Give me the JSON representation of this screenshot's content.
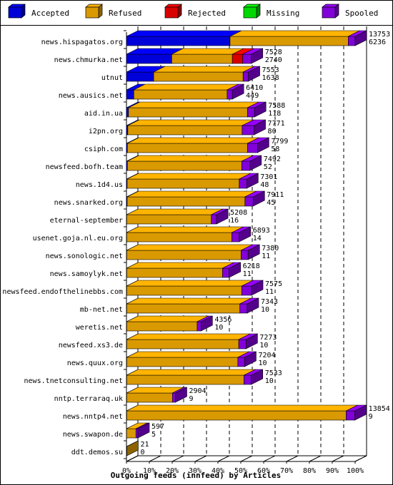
{
  "chart_data": {
    "type": "bar",
    "orientation": "horizontal",
    "stacked": true,
    "style": "3d",
    "title": "Outgoing feeds (innfeed) by Articles",
    "xlabel": "Outgoing feeds (innfeed) by Articles",
    "ylabel": "",
    "xlim": [
      0,
      100
    ],
    "x_unit": "%",
    "x_ticks": [
      "0%",
      "10%",
      "20%",
      "30%",
      "40%",
      "50%",
      "60%",
      "70%",
      "80%",
      "90%",
      "100%"
    ],
    "grid": "vertical-dashed",
    "legend_position": "top",
    "legend": [
      {
        "name": "Accepted",
        "color": "#0000ff"
      },
      {
        "name": "Refused",
        "color": "#ffb400"
      },
      {
        "name": "Rejected",
        "color": "#ff0000"
      },
      {
        "name": "Missing",
        "color": "#00ff00"
      },
      {
        "name": "Spooled",
        "color": "#9900ff"
      }
    ],
    "categories": [
      "news.hispagatos.org",
      "news.chmurka.net",
      "utnut",
      "news.ausics.net",
      "aid.in.ua",
      "i2pn.org",
      "csiph.com",
      "newsfeed.bofh.team",
      "news.1d4.us",
      "news.snarked.org",
      "eternal-september",
      "usenet.goja.nl.eu.org",
      "news.sonologic.net",
      "news.samoylyk.net",
      "newsfeed.endofthelinebbs.com",
      "mb-net.net",
      "weretis.net",
      "newsfeed.xs3.de",
      "news.quux.org",
      "news.tnetconsulting.net",
      "nntp.terraraq.uk",
      "news.nntp4.net",
      "news.swapon.de",
      "ddt.demos.su"
    ],
    "labels_total": [
      "13753",
      "7528",
      "7553",
      "6410",
      "7588",
      "7771",
      "7799",
      "7492",
      "7301",
      "7911",
      "5208",
      "6893",
      "7380",
      "6218",
      "7575",
      "7343",
      "4356",
      "7273",
      "7204",
      "7533",
      "2904",
      "13854",
      "597",
      "21"
    ],
    "labels_accepted": [
      "6236",
      "2740",
      "1638",
      "449",
      "118",
      "80",
      "58",
      "52",
      "48",
      "45",
      "16",
      "14",
      "11",
      "11",
      "11",
      "10",
      "10",
      "10",
      "10",
      "10",
      "9",
      "9",
      "5",
      "0"
    ],
    "series": [
      {
        "name": "Accepted",
        "values": [
          45.3,
          19.8,
          11.9,
          3.2,
          0.9,
          0.6,
          0.4,
          0.4,
          0.3,
          0.3,
          0.1,
          0.1,
          0.1,
          0.1,
          0.1,
          0.1,
          0.1,
          0.1,
          0.1,
          0.1,
          0.1,
          0.1,
          0.04,
          0.0
        ]
      },
      {
        "name": "Refused",
        "values": [
          51.7,
          26.5,
          39.1,
          40.8,
          52.0,
          50.0,
          52.5,
          50.0,
          49.0,
          51.5,
          37.0,
          46.0,
          50.0,
          41.9,
          50.3,
          49.5,
          30.8,
          49.0,
          48.6,
          51.3,
          20.0,
          96.0,
          4.1,
          0.15
        ]
      },
      {
        "name": "Rejected",
        "values": [
          0,
          4.5,
          0,
          0,
          0,
          0,
          0,
          0,
          0,
          0,
          0,
          0,
          0,
          0,
          0,
          0,
          0,
          0,
          0,
          0,
          0,
          0,
          0,
          0
        ]
      },
      {
        "name": "Missing",
        "values": [
          0,
          0,
          0,
          0,
          0,
          0,
          0,
          0,
          0,
          0,
          0,
          0,
          0,
          0,
          0,
          0,
          0,
          0,
          0,
          0,
          0,
          0,
          0,
          0
        ]
      },
      {
        "name": "Spooled",
        "values": [
          3.0,
          3.8,
          2.3,
          2.3,
          3.1,
          5.2,
          4.4,
          3.6,
          3.3,
          3.6,
          2.3,
          3.2,
          3.1,
          2.9,
          4.3,
          3.2,
          1.7,
          3.2,
          3.0,
          3.2,
          1.3,
          3.8,
          0.85,
          0.0
        ]
      }
    ]
  }
}
